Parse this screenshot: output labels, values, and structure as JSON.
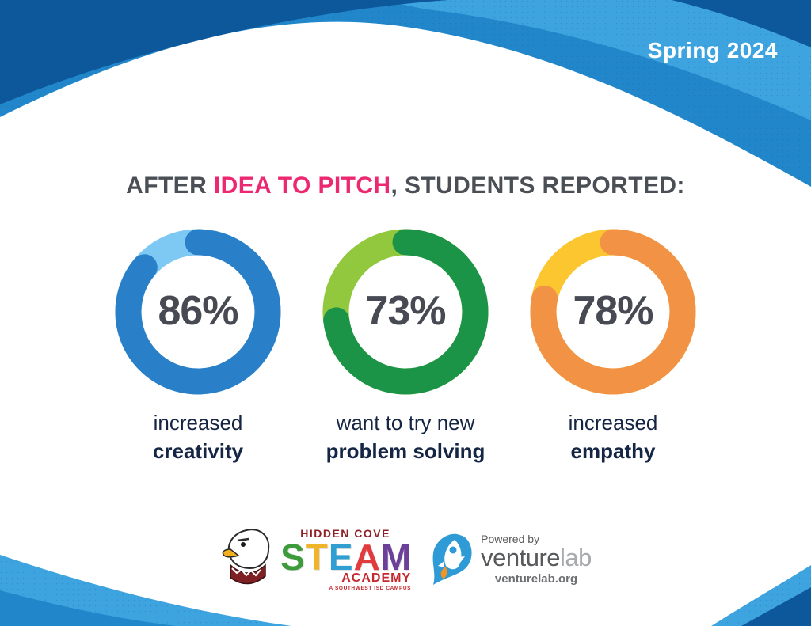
{
  "meta": {
    "season_label": "Spring 2024"
  },
  "title": {
    "prefix": "AFTER ",
    "highlight": "IDEA TO PITCH",
    "suffix": ", STUDENTS REPORTED:"
  },
  "chart_data": {
    "type": "pie",
    "subtype": "donut-progress",
    "title": "AFTER IDEA TO PITCH, STUDENTS REPORTED:",
    "legend": "none",
    "charts": [
      {
        "value": 86,
        "display": "86%",
        "caption_line1": "increased",
        "caption_line2": "creativity",
        "fill_color": "#2A80C8",
        "track_color": "#7EC9F3"
      },
      {
        "value": 73,
        "display": "73%",
        "caption_line1": "want to try new",
        "caption_line2": "problem solving",
        "fill_color": "#1B9447",
        "track_color": "#92C83E"
      },
      {
        "value": 78,
        "display": "78%",
        "caption_line1": "increased",
        "caption_line2": "empathy",
        "fill_color": "#F19245",
        "track_color": "#FBC62F"
      }
    ]
  },
  "footer": {
    "school": {
      "name_top": "HIDDEN COVE",
      "steam_letters": [
        {
          "char": "S",
          "color": "#3E9B3C"
        },
        {
          "char": "T",
          "color": "#F0B429"
        },
        {
          "char": "E",
          "color": "#2E9FD0"
        },
        {
          "char": "A",
          "color": "#E23B3E"
        },
        {
          "char": "M",
          "color": "#6C4099"
        }
      ],
      "name_bottom": "ACADEMY",
      "tagline": "A SOUTHWEST ISD CAMPUS"
    },
    "venturelab": {
      "powered_by": "Powered by",
      "brand_primary": "venture",
      "brand_secondary": "lab",
      "url": "venturelab.org"
    }
  },
  "colors": {
    "navy_wave": "#0D579B",
    "medium_wave": "#2187CA",
    "light_wave": "#3EA4E0",
    "title_text": "#4A4E55",
    "title_highlight": "#EC2970",
    "caption_text": "#152544",
    "percent_text": "#474A52",
    "school_red_dark": "#8E2025",
    "school_red": "#C5272D",
    "vl_blue": "#2E9BD6",
    "vl_orange": "#F7941E",
    "vl_gray": "#58595B",
    "vl_gray_mid": "#6D6E71",
    "vl_gray_light": "#A7A9AC"
  }
}
